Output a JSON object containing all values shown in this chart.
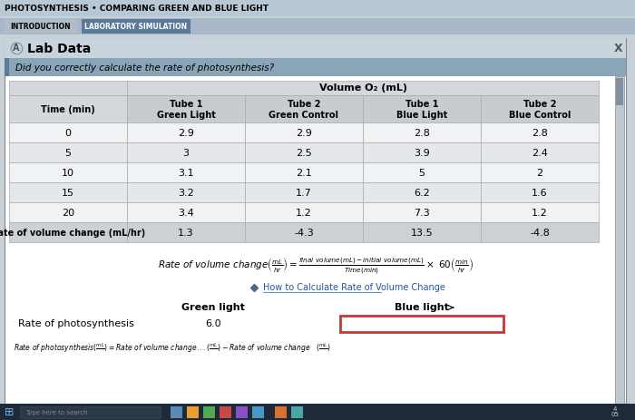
{
  "title": "PHOTOSYNTHESIS • COMPARING GREEN AND BLUE LIGHT",
  "tab1": "INTRODUCTION",
  "tab2": "LABORATORY SIMULATION",
  "section_title": "Lab Data",
  "question": "Did you correctly calculate the rate of photosynthesis?",
  "volume_header": "Volume O₂ (mL)",
  "col_headers": [
    "Time (min)",
    "Tube 1\nGreen Light",
    "Tube 2\nGreen Control",
    "Tube 1\nBlue Light",
    "Tube 2\nBlue Control"
  ],
  "row_labels": [
    "0",
    "5",
    "10",
    "15",
    "20",
    "Rate of volume change (mL/hr)"
  ],
  "table_data": [
    [
      "2.9",
      "2.9",
      "2.8",
      "2.8"
    ],
    [
      "3",
      "2.5",
      "3.9",
      "2.4"
    ],
    [
      "3.1",
      "2.1",
      "5",
      "2"
    ],
    [
      "3.2",
      "1.7",
      "6.2",
      "1.6"
    ],
    [
      "3.4",
      "1.2",
      "7.3",
      "1.2"
    ],
    [
      "1.3",
      "-4.3",
      "13.5",
      "-4.8"
    ]
  ],
  "link_text": "How to Calculate Rate of Volume Change",
  "green_light_label": "Green light",
  "blue_light_label": "Blue light",
  "rate_label": "Rate of photosynthesis",
  "green_value": "6.0",
  "bg_color": "#c8d0d8",
  "panel_bg": "#e8eaec",
  "header_bg": "#d0d4d8",
  "table_row_odd": "#f0f2f4",
  "table_row_even": "#e4e8ec",
  "rate_row_bg": "#cdd1d5",
  "tab_active_bg": "#5a7a9a",
  "tab_inactive_bg": "#b0bcc8",
  "input_box_border": "#cc3333",
  "close_x_color": "#555555"
}
